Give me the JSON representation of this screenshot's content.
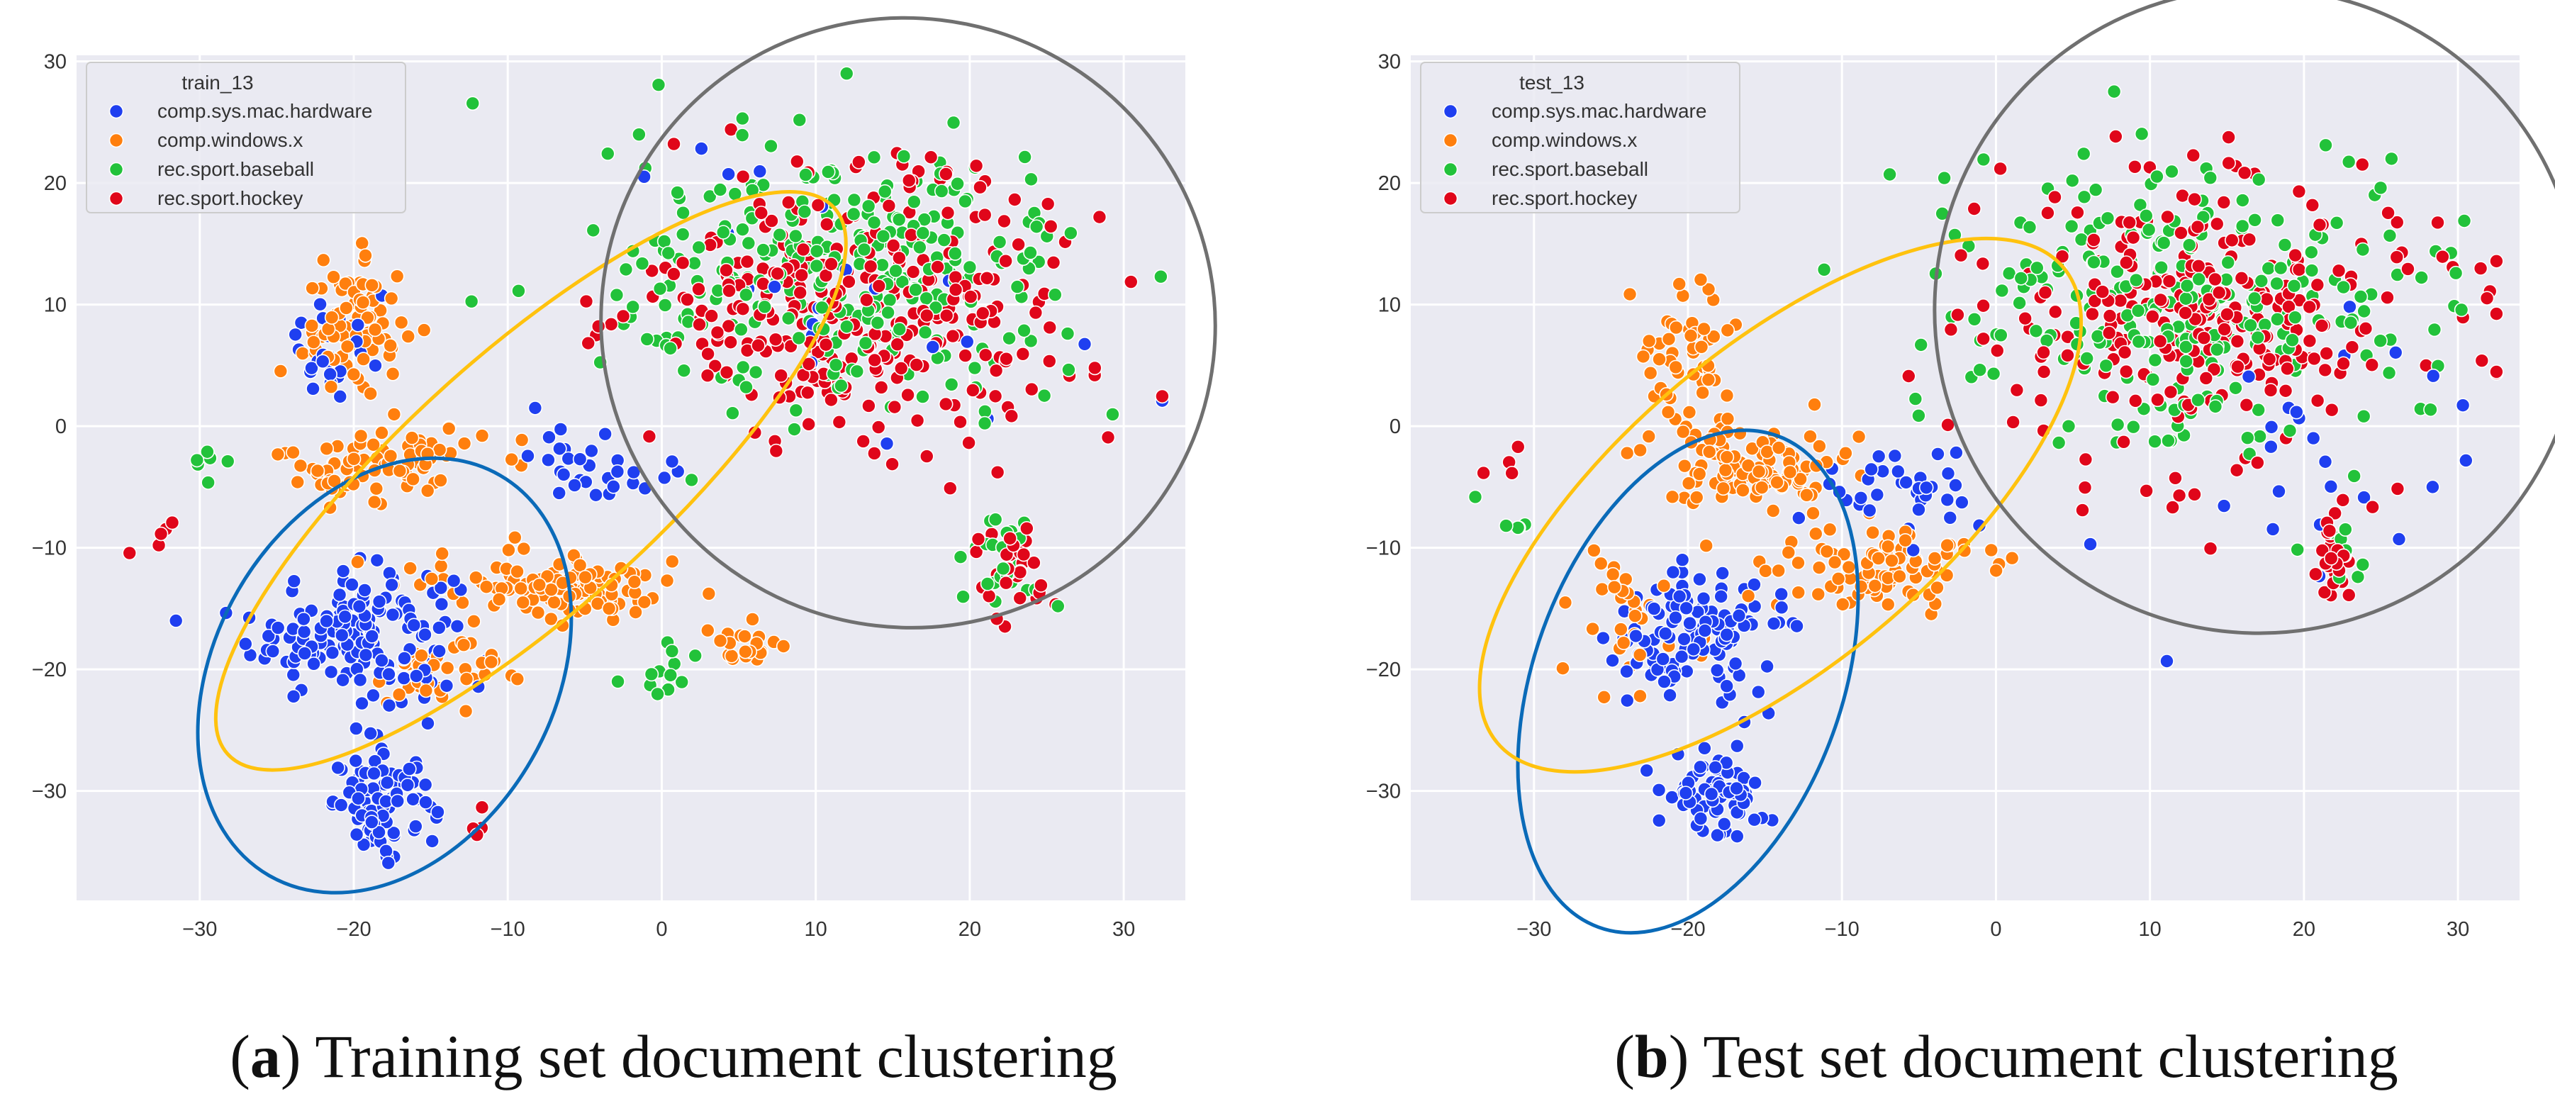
{
  "colors": {
    "comp_sys_mac_hardware": "#1f3ff0",
    "comp_windows_x": "#ff7f0e",
    "rec_sport_baseball": "#22c23a",
    "rec_sport_hockey": "#e0061a",
    "cluster_blue": "#0a6ab8",
    "cluster_yellow": "#ffc20e",
    "cluster_gray": "#707070",
    "plot_bg": "#eaeaf2",
    "grid": "#ffffff"
  },
  "captions": [
    {
      "letter": "a",
      "open": "(",
      "close": ")",
      "text": " Training set document clustering"
    },
    {
      "letter": "b",
      "open": "(",
      "close": ")",
      "text": " Test set document clustering"
    }
  ],
  "chart_data": [
    {
      "type": "scatter",
      "title": "",
      "xlabel": "",
      "ylabel": "",
      "xlim": [
        -38,
        34
      ],
      "ylim": [
        -39,
        30.5
      ],
      "xticks": [
        -30,
        -20,
        -10,
        0,
        10,
        20,
        30
      ],
      "yticks": [
        -30,
        -20,
        -10,
        0,
        10,
        20,
        30
      ],
      "xtick_labels": [
        "−30",
        "−20",
        "−10",
        "0",
        "10",
        "20",
        "30"
      ],
      "ytick_labels": [
        "−30",
        "−20",
        "−10",
        "0",
        "10",
        "20",
        "30"
      ],
      "grid": true,
      "legend": {
        "title": "train_13",
        "position": "top-left",
        "entries": [
          "comp.sys.mac.hardware",
          "comp.windows.x",
          "rec.sport.baseball",
          "rec.sport.hockey"
        ]
      },
      "series": [
        {
          "name": "comp.sys.mac.hardware",
          "color_key": "comp_sys_mac_hardware",
          "clusters": [
            {
              "cx": -20,
              "cy": -17,
              "rx": 6,
              "ry": 5,
              "n": 160
            },
            {
              "cx": -18,
              "cy": -31,
              "rx": 3,
              "ry": 3.5,
              "n": 90
            },
            {
              "cx": -21,
              "cy": 6,
              "rx": 3,
              "ry": 4,
              "n": 30
            },
            {
              "cx": -4,
              "cy": -3,
              "rx": 4,
              "ry": 3,
              "n": 30
            },
            {
              "cx": 12,
              "cy": 12,
              "rx": 14,
              "ry": 10,
              "n": 25
            }
          ]
        },
        {
          "name": "comp.windows.x",
          "color_key": "comp_windows_x",
          "clusters": [
            {
              "cx": -20,
              "cy": 8,
              "rx": 3,
              "ry": 5,
              "n": 80
            },
            {
              "cx": -18,
              "cy": -3,
              "rx": 6,
              "ry": 3,
              "n": 80
            },
            {
              "cx": -7,
              "cy": -13,
              "rx": 8,
              "ry": 2.5,
              "n": 110
            },
            {
              "cx": 5,
              "cy": -18,
              "rx": 2,
              "ry": 1.5,
              "n": 20
            },
            {
              "cx": -14,
              "cy": -20,
              "rx": 5,
              "ry": 3,
              "n": 40
            }
          ]
        },
        {
          "name": "rec.sport.baseball",
          "color_key": "rec_sport_baseball",
          "clusters": [
            {
              "cx": 12,
              "cy": 12,
              "rx": 14,
              "ry": 10,
              "n": 300
            },
            {
              "cx": 22,
              "cy": -11,
              "rx": 2,
              "ry": 4,
              "n": 25
            },
            {
              "cx": 0,
              "cy": -20,
              "rx": 3,
              "ry": 2,
              "n": 12
            },
            {
              "cx": -30,
              "cy": -3,
              "rx": 2,
              "ry": 2,
              "n": 6
            }
          ]
        },
        {
          "name": "rec.sport.hockey",
          "color_key": "rec_sport_hockey",
          "clusters": [
            {
              "cx": 13,
              "cy": 10,
              "rx": 13,
              "ry": 10,
              "n": 320
            },
            {
              "cx": 23,
              "cy": -11,
              "rx": 2,
              "ry": 4,
              "n": 30
            },
            {
              "cx": -33,
              "cy": -8,
              "rx": 2,
              "ry": 2,
              "n": 5
            },
            {
              "cx": -12,
              "cy": -33,
              "rx": 1.5,
              "ry": 1,
              "n": 4
            }
          ]
        }
      ],
      "cluster_ellipses": [
        {
          "color_key": "cluster_blue",
          "cx": -18,
          "cy": -20.5,
          "rx": 11,
          "ry": 19,
          "angle": 30
        },
        {
          "color_key": "cluster_yellow",
          "cx": -8.5,
          "cy": -4.5,
          "rx": 26.5,
          "ry": 10.5,
          "angle": -42
        },
        {
          "color_key": "cluster_gray",
          "cx": 16,
          "cy": 8.5,
          "rx": 20,
          "ry": 25,
          "angle": 28
        }
      ]
    },
    {
      "type": "scatter",
      "title": "",
      "xlabel": "",
      "ylabel": "",
      "xlim": [
        -38,
        34
      ],
      "ylim": [
        -39,
        30.5
      ],
      "xticks": [
        -30,
        -20,
        -10,
        0,
        10,
        20,
        30
      ],
      "yticks": [
        -30,
        -20,
        -10,
        0,
        10,
        20,
        30
      ],
      "xtick_labels": [
        "−30",
        "−20",
        "−10",
        "0",
        "10",
        "20",
        "30"
      ],
      "ytick_labels": [
        "−30",
        "−20",
        "−10",
        "0",
        "10",
        "20",
        "30"
      ],
      "grid": true,
      "legend": {
        "title": "test_13",
        "position": "top-left",
        "entries": [
          "comp.sys.mac.hardware",
          "comp.windows.x",
          "rec.sport.baseball",
          "rec.sport.hockey"
        ]
      },
      "series": [
        {
          "name": "comp.sys.mac.hardware",
          "color_key": "comp_sys_mac_hardware",
          "clusters": [
            {
              "cx": -20,
              "cy": -17,
              "rx": 5,
              "ry": 5,
              "n": 120
            },
            {
              "cx": -18,
              "cy": -30,
              "rx": 3,
              "ry": 3.5,
              "n": 70
            },
            {
              "cx": -6,
              "cy": -5,
              "rx": 5,
              "ry": 4,
              "n": 35
            },
            {
              "cx": 20,
              "cy": -3,
              "rx": 10,
              "ry": 12,
              "n": 25
            }
          ]
        },
        {
          "name": "comp.windows.x",
          "color_key": "comp_windows_x",
          "clusters": [
            {
              "cx": -20,
              "cy": 6,
              "rx": 3,
              "ry": 5,
              "n": 50
            },
            {
              "cx": -16,
              "cy": -3,
              "rx": 6,
              "ry": 3,
              "n": 110
            },
            {
              "cx": -8,
              "cy": -12,
              "rx": 7,
              "ry": 3,
              "n": 90
            },
            {
              "cx": -24,
              "cy": -15,
              "rx": 4,
              "ry": 5,
              "n": 30
            }
          ]
        },
        {
          "name": "rec.sport.baseball",
          "color_key": "rec_sport_baseball",
          "clusters": [
            {
              "cx": 12,
              "cy": 10,
              "rx": 14,
              "ry": 11,
              "n": 260
            },
            {
              "cx": 22,
              "cy": -11,
              "rx": 2,
              "ry": 3,
              "n": 10
            },
            {
              "cx": -32,
              "cy": -8,
              "rx": 2,
              "ry": 2,
              "n": 5
            }
          ]
        },
        {
          "name": "rec.sport.hockey",
          "color_key": "rec_sport_hockey",
          "clusters": [
            {
              "cx": 14,
              "cy": 9,
              "rx": 13,
              "ry": 11,
              "n": 280
            },
            {
              "cx": 22,
              "cy": -11,
              "rx": 1.5,
              "ry": 3,
              "n": 25
            },
            {
              "cx": -33,
              "cy": -3,
              "rx": 2,
              "ry": 2,
              "n": 4
            }
          ]
        }
      ],
      "cluster_ellipses": [
        {
          "color_key": "cluster_blue",
          "cx": -20,
          "cy": -21,
          "rx": 10,
          "ry": 21.5,
          "angle": 20
        },
        {
          "color_key": "cluster_yellow",
          "cx": -14,
          "cy": -6.5,
          "rx": 24,
          "ry": 13,
          "angle": -40
        },
        {
          "color_key": "cluster_gray",
          "cx": 17,
          "cy": 9.5,
          "rx": 21,
          "ry": 26.5,
          "angle": 28
        }
      ]
    }
  ]
}
